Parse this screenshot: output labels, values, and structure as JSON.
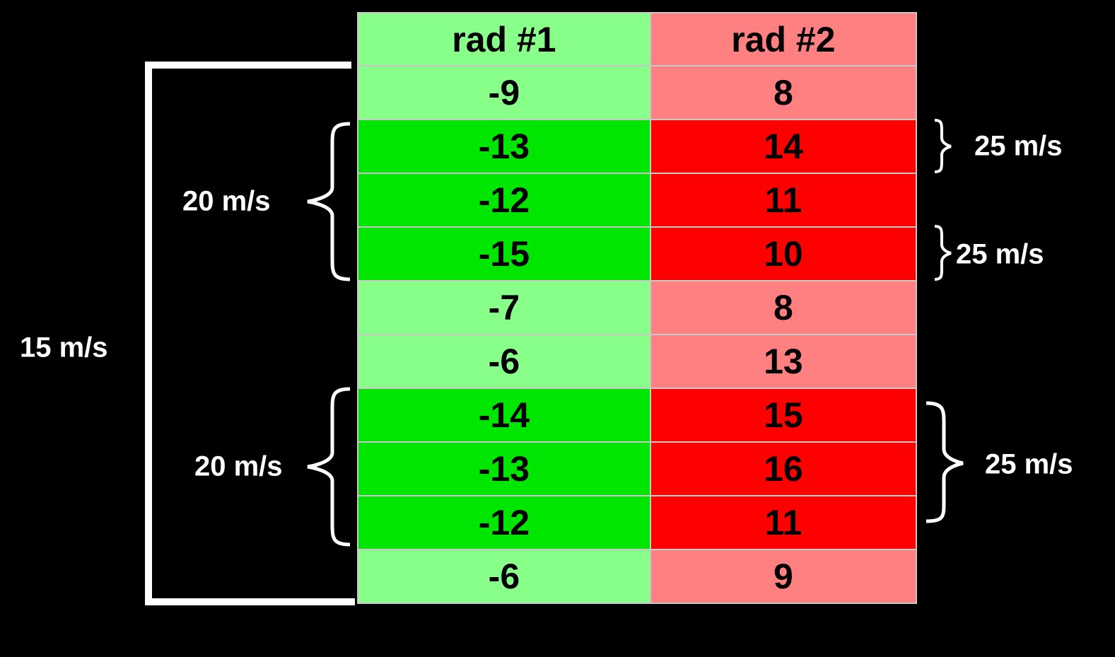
{
  "table": {
    "header": [
      "rad #1",
      "rad #2"
    ],
    "rows": [
      [
        -9,
        8
      ],
      [
        -13,
        14
      ],
      [
        -12,
        11
      ],
      [
        -15,
        10
      ],
      [
        -7,
        8
      ],
      [
        -6,
        13
      ],
      [
        -14,
        15
      ],
      [
        -13,
        16
      ],
      [
        -12,
        11
      ],
      [
        -6,
        9
      ]
    ]
  },
  "annotations": {
    "outer_bracket": "15 m/s",
    "left_braces": [
      "20 m/s",
      "20 m/s"
    ],
    "right_braces": [
      "25 m/s",
      "25 m/s",
      "25 m/s"
    ]
  }
}
